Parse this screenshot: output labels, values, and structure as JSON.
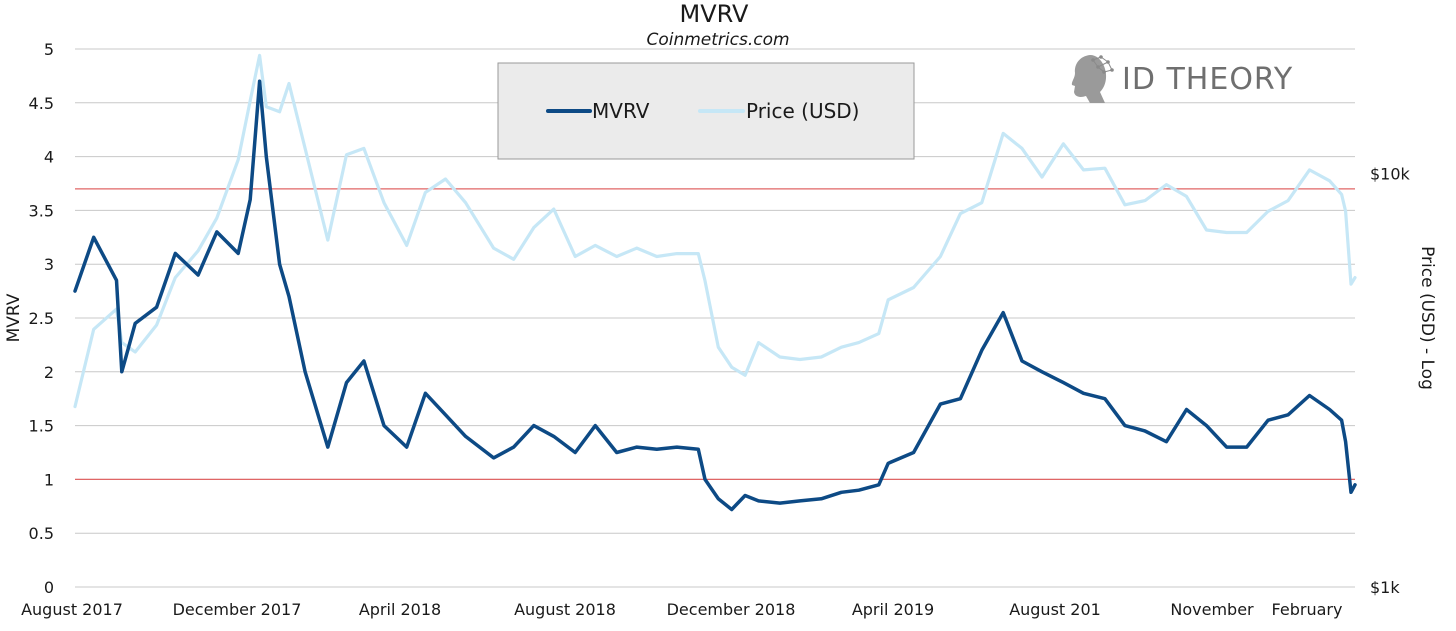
{
  "chart_data": {
    "type": "line",
    "title": "MVRV",
    "subtitle": "Coinmetrics.com",
    "ylabel": "MVRV",
    "y2label": "Price (USD) - Log",
    "ylim": [
      0,
      5
    ],
    "y_ticks": [
      "0",
      "0.5",
      "1",
      "1.5",
      "2",
      "2.5",
      "3",
      "3.5",
      "4",
      "4.5",
      "5"
    ],
    "y2_ticks": [
      "$1k",
      "$10k"
    ],
    "y2_scale": "log",
    "y2lim": [
      1000,
      20000
    ],
    "grid": true,
    "legend_position": "top-center",
    "x_ticks": [
      "August 2017",
      "December 2017",
      "April 2018",
      "August 2018",
      "December 2018",
      "April 2019",
      "August 201",
      "November",
      "February"
    ],
    "x_range": [
      "2017-08-01",
      "2020-03-15"
    ],
    "reference_lines": [
      {
        "y": 1,
        "axis": "MVRV"
      },
      {
        "y": 3.7,
        "axis": "MVRV"
      }
    ],
    "series": [
      {
        "name": "MVRV",
        "color": "#0d4a85",
        "x": [
          "2017-08-01",
          "2017-08-15",
          "2017-09-01",
          "2017-09-05",
          "2017-09-15",
          "2017-10-01",
          "2017-10-15",
          "2017-11-01",
          "2017-11-15",
          "2017-12-01",
          "2017-12-10",
          "2017-12-17",
          "2017-12-22",
          "2018-01-01",
          "2018-01-08",
          "2018-01-20",
          "2018-02-06",
          "2018-02-20",
          "2018-03-05",
          "2018-03-20",
          "2018-04-06",
          "2018-04-20",
          "2018-05-05",
          "2018-05-20",
          "2018-06-10",
          "2018-06-25",
          "2018-07-10",
          "2018-07-25",
          "2018-08-10",
          "2018-08-25",
          "2018-09-10",
          "2018-09-25",
          "2018-10-10",
          "2018-10-25",
          "2018-11-10",
          "2018-11-15",
          "2018-11-25",
          "2018-12-05",
          "2018-12-15",
          "2018-12-25",
          "2019-01-10",
          "2019-01-25",
          "2019-02-10",
          "2019-02-25",
          "2019-03-10",
          "2019-03-25",
          "2019-04-01",
          "2019-04-20",
          "2019-05-10",
          "2019-05-25",
          "2019-06-10",
          "2019-06-26",
          "2019-07-10",
          "2019-07-25",
          "2019-08-10",
          "2019-08-25",
          "2019-09-10",
          "2019-09-25",
          "2019-10-10",
          "2019-10-26",
          "2019-11-10",
          "2019-11-25",
          "2019-12-10",
          "2019-12-25",
          "2020-01-10",
          "2020-01-25",
          "2020-02-10",
          "2020-02-25",
          "2020-03-05",
          "2020-03-08",
          "2020-03-12",
          "2020-03-15"
        ],
        "values": [
          2.75,
          3.25,
          2.85,
          2.0,
          2.45,
          2.6,
          3.1,
          2.9,
          3.3,
          3.1,
          3.6,
          4.7,
          4.0,
          3.0,
          2.7,
          2.0,
          1.3,
          1.9,
          2.1,
          1.5,
          1.3,
          1.8,
          1.6,
          1.4,
          1.2,
          1.3,
          1.5,
          1.4,
          1.25,
          1.5,
          1.25,
          1.3,
          1.28,
          1.3,
          1.28,
          1.0,
          0.82,
          0.72,
          0.85,
          0.8,
          0.78,
          0.8,
          0.82,
          0.88,
          0.9,
          0.95,
          1.15,
          1.25,
          1.7,
          1.75,
          2.2,
          2.55,
          2.1,
          2.0,
          1.9,
          1.8,
          1.75,
          1.5,
          1.45,
          1.35,
          1.65,
          1.5,
          1.3,
          1.3,
          1.55,
          1.6,
          1.78,
          1.65,
          1.55,
          1.35,
          0.88,
          0.95
        ]
      },
      {
        "name": "Price (USD)",
        "color": "#c6e7f6",
        "x": [
          "2017-08-01",
          "2017-08-15",
          "2017-09-01",
          "2017-09-05",
          "2017-09-15",
          "2017-10-01",
          "2017-10-15",
          "2017-11-01",
          "2017-11-15",
          "2017-12-01",
          "2017-12-10",
          "2017-12-17",
          "2017-12-22",
          "2018-01-01",
          "2018-01-08",
          "2018-01-20",
          "2018-02-06",
          "2018-02-20",
          "2018-03-05",
          "2018-03-20",
          "2018-04-06",
          "2018-04-20",
          "2018-05-05",
          "2018-05-20",
          "2018-06-10",
          "2018-06-25",
          "2018-07-10",
          "2018-07-25",
          "2018-08-10",
          "2018-08-25",
          "2018-09-10",
          "2018-09-25",
          "2018-10-10",
          "2018-10-25",
          "2018-11-10",
          "2018-11-15",
          "2018-11-25",
          "2018-12-05",
          "2018-12-15",
          "2018-12-25",
          "2019-01-10",
          "2019-01-25",
          "2019-02-10",
          "2019-02-25",
          "2019-03-10",
          "2019-03-25",
          "2019-04-01",
          "2019-04-20",
          "2019-05-10",
          "2019-05-25",
          "2019-06-10",
          "2019-06-26",
          "2019-07-10",
          "2019-07-25",
          "2019-08-10",
          "2019-08-25",
          "2019-09-10",
          "2019-09-25",
          "2019-10-10",
          "2019-10-26",
          "2019-11-10",
          "2019-11-25",
          "2019-12-10",
          "2019-12-25",
          "2020-01-10",
          "2020-01-25",
          "2020-02-10",
          "2020-02-25",
          "2020-03-05",
          "2020-03-08",
          "2020-03-12",
          "2020-03-15"
        ],
        "values": [
          2730,
          4200,
          4700,
          3900,
          3700,
          4300,
          5600,
          6500,
          7800,
          10800,
          15000,
          19300,
          14500,
          14100,
          16500,
          11500,
          6900,
          11100,
          11500,
          8500,
          6700,
          9000,
          9700,
          8500,
          6600,
          6200,
          7400,
          8200,
          6300,
          6700,
          6300,
          6600,
          6300,
          6400,
          6400,
          5500,
          3800,
          3400,
          3250,
          3900,
          3600,
          3550,
          3600,
          3800,
          3900,
          4100,
          4950,
          5300,
          6300,
          8000,
          8500,
          12500,
          11500,
          9800,
          11800,
          10200,
          10300,
          8400,
          8600,
          9400,
          8800,
          7300,
          7200,
          7200,
          8100,
          8600,
          10200,
          9600,
          8900,
          8100,
          5400,
          5600
        ]
      }
    ]
  },
  "legend": {
    "entries": [
      {
        "label": "MVRV",
        "color": "#0d4a85"
      },
      {
        "label": "Price (USD)",
        "color": "#c6e7f6"
      }
    ]
  },
  "brand": {
    "name": "ID THEORY",
    "icon": "head-network-icon"
  },
  "colors": {
    "grid": "#c8c8c8",
    "reference_line": "#e06666",
    "legend_bg": "#ebebeb",
    "legend_border": "#9a9a9a"
  }
}
